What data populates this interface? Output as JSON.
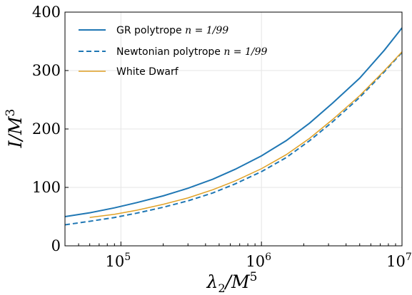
{
  "chart_data": {
    "type": "line",
    "xscale": "log",
    "xlim": [
      40000,
      10000000
    ],
    "ylim": [
      0,
      400
    ],
    "grid": true,
    "legend_position": "top-left",
    "xlabel_parts": {
      "base": "λ",
      "sub": "2",
      "mid": "/M",
      "sup": "5"
    },
    "ylabel_parts": {
      "base": "I/M",
      "sup": "3"
    },
    "yticks": [
      {
        "value": 0,
        "label": "0"
      },
      {
        "value": 100,
        "label": "100"
      },
      {
        "value": 200,
        "label": "200"
      },
      {
        "value": 300,
        "label": "300"
      },
      {
        "value": 400,
        "label": "400"
      }
    ],
    "xticks": [
      {
        "value": 100000,
        "base": "10",
        "exp": "5"
      },
      {
        "value": 1000000,
        "base": "10",
        "exp": "6"
      },
      {
        "value": 10000000,
        "base": "10",
        "exp": "7"
      }
    ],
    "series": [
      {
        "name_text": "GR polytrope ",
        "name_math": "n = 1/99",
        "color": "#1f77b4",
        "dash": "solid",
        "x": [
          40000,
          60000,
          90000,
          130000,
          200000,
          300000,
          450000,
          650000,
          1000000,
          1500000,
          2200000,
          3200000,
          5000000,
          7500000,
          10000000
        ],
        "y": [
          50,
          56.5,
          65,
          74,
          85.5,
          98.5,
          114,
          131,
          154,
          180,
          210,
          244,
          287,
          335,
          373
        ]
      },
      {
        "name_text": "Newtonian polytrope ",
        "name_math": "n = 1/99",
        "color": "#1f77b4",
        "dash": "dashed",
        "x": [
          40000,
          60000,
          90000,
          130000,
          200000,
          300000,
          450000,
          650000,
          1000000,
          1500000,
          2200000,
          3200000,
          5000000,
          7500000,
          10000000
        ],
        "y": [
          36,
          42,
          48.5,
          56,
          66,
          77,
          90.5,
          106,
          127,
          151,
          180,
          212,
          254,
          298,
          331
        ]
      },
      {
        "name_text": "White Dwarf",
        "name_math": "",
        "color": "#e0a126",
        "dash": "solid",
        "x": [
          60000,
          90000,
          130000,
          200000,
          300000,
          450000,
          650000,
          1000000,
          1500000,
          2200000,
          3200000,
          5000000,
          7500000,
          10000000
        ],
        "y": [
          48.5,
          54,
          61,
          71,
          82,
          96,
          111,
          132,
          156,
          184,
          216,
          257,
          300,
          332
        ]
      }
    ]
  }
}
